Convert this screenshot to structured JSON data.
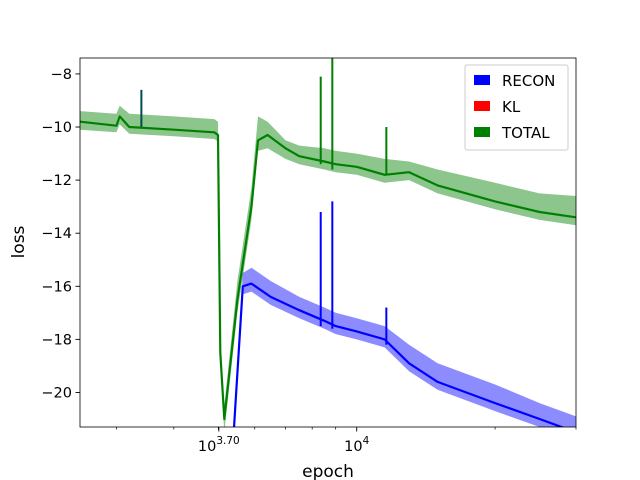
{
  "chart_data": {
    "type": "line",
    "xscale": "log",
    "xlabel": "epoch",
    "ylabel": "loss",
    "xlim": [
      2500,
      30000
    ],
    "ylim": [
      -21.3,
      -7.4
    ],
    "x_ticks": [
      {
        "value": 5011.87,
        "base": "10",
        "exp": "3.70"
      },
      {
        "value": 10000,
        "base": "10",
        "exp": "4"
      }
    ],
    "y_ticks": [
      {
        "value": -8,
        "label": "−8"
      },
      {
        "value": -10,
        "label": "−10"
      },
      {
        "value": -12,
        "label": "−12"
      },
      {
        "value": -14,
        "label": "−14"
      },
      {
        "value": -16,
        "label": "−16"
      },
      {
        "value": -18,
        "label": "−18"
      },
      {
        "value": -20,
        "label": "−20"
      }
    ],
    "legend": {
      "placement": "top-right",
      "entries": [
        {
          "label": "RECON",
          "color": "#0000ff"
        },
        {
          "label": "KL",
          "color": "#ff0000"
        },
        {
          "label": "TOTAL",
          "color": "#008000"
        }
      ]
    },
    "series": [
      {
        "name": "TOTAL",
        "color": "#008000",
        "x": [
          2500,
          3000,
          3050,
          3200,
          4000,
          4900,
          4990,
          5050,
          5150,
          5500,
          5900,
          6100,
          6400,
          7000,
          7500,
          8500,
          9000,
          10000,
          11500,
          13000,
          15000,
          20000,
          25000,
          30000
        ],
        "y": [
          -9.8,
          -9.95,
          -9.6,
          -10.0,
          -10.1,
          -10.2,
          -10.3,
          -18.5,
          -21.0,
          -16.5,
          -13.0,
          -10.5,
          -10.3,
          -10.8,
          -11.1,
          -11.3,
          -11.4,
          -11.5,
          -11.8,
          -11.7,
          -12.2,
          -12.8,
          -13.2,
          -13.4
        ],
        "upper": [
          -9.4,
          -9.5,
          -9.2,
          -9.5,
          -9.6,
          -9.7,
          -9.8,
          -18.0,
          -20.5,
          -15.8,
          -12.3,
          -9.6,
          -9.8,
          -10.5,
          -10.7,
          -10.8,
          -10.9,
          -11.0,
          -11.2,
          -11.3,
          -11.6,
          -12.1,
          -12.5,
          -12.6
        ],
        "lower": [
          -10.1,
          -10.2,
          -9.9,
          -10.25,
          -10.35,
          -10.45,
          -10.55,
          -19.0,
          -21.5,
          -17.0,
          -13.5,
          -10.9,
          -10.8,
          -11.2,
          -11.4,
          -11.6,
          -11.7,
          -11.8,
          -12.1,
          -12.0,
          -12.5,
          -13.1,
          -13.5,
          -13.7
        ]
      },
      {
        "name": "RECON",
        "color": "#0000ff",
        "x": [
          5400,
          5650,
          5900,
          6500,
          7500,
          8500,
          9000,
          10000,
          11500,
          13000,
          15000,
          20000,
          25000,
          30000
        ],
        "y": [
          -21.5,
          -16.0,
          -15.9,
          -16.4,
          -16.9,
          -17.3,
          -17.5,
          -17.7,
          -18.0,
          -18.9,
          -19.6,
          -20.4,
          -21.0,
          -21.5
        ],
        "upper": [
          -21.3,
          -15.5,
          -15.3,
          -15.8,
          -16.4,
          -16.8,
          -17.0,
          -17.2,
          -17.5,
          -18.2,
          -18.9,
          -19.7,
          -20.4,
          -20.9
        ],
        "lower": [
          -21.6,
          -16.3,
          -16.2,
          -16.7,
          -17.2,
          -17.6,
          -17.8,
          -18.0,
          -18.3,
          -19.2,
          -19.9,
          -20.7,
          -21.3,
          -21.6
        ]
      }
    ],
    "spikes": [
      {
        "x": 3400,
        "top": -8.6,
        "bottom": -10.0,
        "color": "#004d4d"
      },
      {
        "x": 8350,
        "top": -8.1,
        "bottom": -11.4,
        "color": "#008000"
      },
      {
        "x": 8350,
        "top": -13.2,
        "bottom": -17.5,
        "color": "#0000ff"
      },
      {
        "x": 8850,
        "top": -7.4,
        "bottom": -11.6,
        "color": "#008000"
      },
      {
        "x": 8850,
        "top": -12.8,
        "bottom": -17.6,
        "color": "#0000ff"
      },
      {
        "x": 11600,
        "top": -10.0,
        "bottom": -11.8,
        "color": "#008000"
      },
      {
        "x": 11600,
        "top": -16.8,
        "bottom": -18.2,
        "color": "#0000ff"
      }
    ]
  }
}
